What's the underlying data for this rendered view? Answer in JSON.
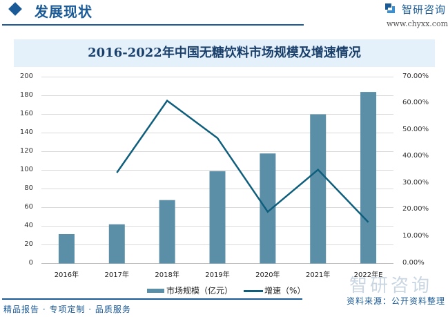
{
  "header": {
    "section_title": "发展现状",
    "brand_name": "智研咨询",
    "brand_url": "www.chyxx.com",
    "accent_color": "#1a5a96"
  },
  "chart_title": "2016-2022年中国无糖饮料市场规模及增速情况",
  "legend": {
    "bar_label": "市场规模（亿元）",
    "line_label": "增速（%）"
  },
  "footer": {
    "left_text": "精品报告 · 专项定制 · 品质服务",
    "source_text": "资料来源：公开资料整理",
    "watermark_text": "智研咨询"
  },
  "chart_data": {
    "type": "bar+line",
    "title": "2016-2022年中国无糖饮料市场规模及增速情况",
    "categories": [
      "2016年",
      "2017年",
      "2018年",
      "2019年",
      "2020年",
      "2021年",
      "2022年E"
    ],
    "series": [
      {
        "name": "市场规模（亿元）",
        "type": "bar",
        "axis": "left",
        "color": "#5b8fa8",
        "values": [
          31.5,
          42,
          68,
          99,
          118,
          160,
          184
        ]
      },
      {
        "name": "增速（%）",
        "type": "line",
        "axis": "right",
        "color": "#0e5e7c",
        "values": [
          null,
          34.1,
          61.1,
          47.1,
          19.4,
          35.2,
          15.5
        ]
      }
    ],
    "y_left": {
      "min": 0,
      "max": 200,
      "step": 20,
      "ticks": [
        "0",
        "20",
        "40",
        "60",
        "80",
        "100",
        "120",
        "140",
        "160",
        "180",
        "200"
      ]
    },
    "y_right": {
      "min": 0,
      "max": 70,
      "step": 10,
      "ticks": [
        "0.00%",
        "10.00%",
        "20.00%",
        "30.00%",
        "40.00%",
        "50.00%",
        "60.00%",
        "70.00%"
      ]
    },
    "grid": true,
    "legend_position": "bottom"
  }
}
